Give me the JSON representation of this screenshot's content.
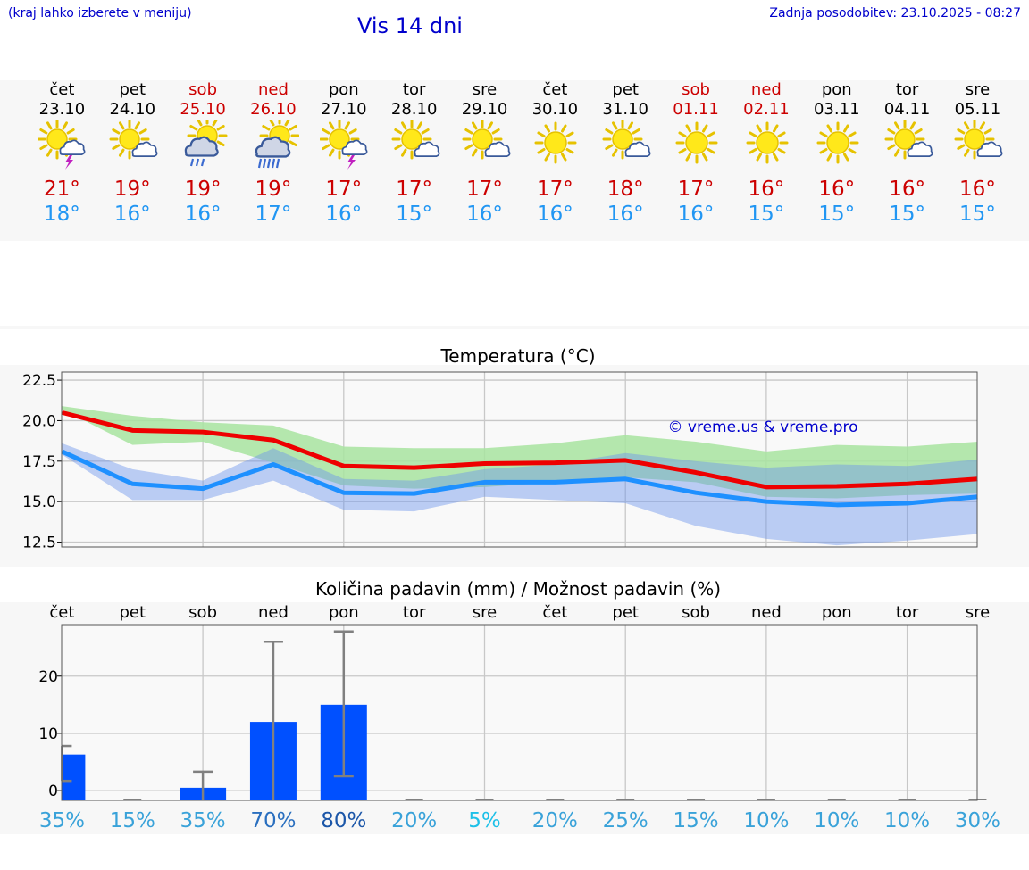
{
  "header": {
    "note": "(kraj lahko izberete v meniju)",
    "title": "Vis 14 dni",
    "update": "Zadnja posodobitev: 23.10.2025 - 08:27"
  },
  "days": [
    {
      "name": "čet",
      "date": "23.10",
      "weekend": false,
      "icon": "sun-cloud-thunder-icon",
      "tmax": "21°",
      "tmin": "18°"
    },
    {
      "name": "pet",
      "date": "24.10",
      "weekend": false,
      "icon": "sun-cloud-icon",
      "tmax": "19°",
      "tmin": "16°"
    },
    {
      "name": "sob",
      "date": "25.10",
      "weekend": true,
      "icon": "sun-cloud-rain-icon",
      "tmax": "19°",
      "tmin": "16°"
    },
    {
      "name": "ned",
      "date": "26.10",
      "weekend": true,
      "icon": "sun-cloud-heavy-rain-icon",
      "tmax": "19°",
      "tmin": "17°"
    },
    {
      "name": "pon",
      "date": "27.10",
      "weekend": false,
      "icon": "sun-cloud-thunder-icon",
      "tmax": "17°",
      "tmin": "16°"
    },
    {
      "name": "tor",
      "date": "28.10",
      "weekend": false,
      "icon": "sun-cloud-icon",
      "tmax": "17°",
      "tmin": "15°"
    },
    {
      "name": "sre",
      "date": "29.10",
      "weekend": false,
      "icon": "sun-cloud-icon",
      "tmax": "17°",
      "tmin": "16°"
    },
    {
      "name": "čet",
      "date": "30.10",
      "weekend": false,
      "icon": "sun-icon",
      "tmax": "17°",
      "tmin": "16°"
    },
    {
      "name": "pet",
      "date": "31.10",
      "weekend": false,
      "icon": "sun-cloud-icon",
      "tmax": "18°",
      "tmin": "16°"
    },
    {
      "name": "sob",
      "date": "01.11",
      "weekend": true,
      "icon": "sun-icon",
      "tmax": "17°",
      "tmin": "16°"
    },
    {
      "name": "ned",
      "date": "02.11",
      "weekend": true,
      "icon": "sun-icon",
      "tmax": "16°",
      "tmin": "15°"
    },
    {
      "name": "pon",
      "date": "03.11",
      "weekend": false,
      "icon": "sun-icon",
      "tmax": "16°",
      "tmin": "15°"
    },
    {
      "name": "tor",
      "date": "04.11",
      "weekend": false,
      "icon": "sun-cloud-icon",
      "tmax": "16°",
      "tmin": "15°"
    },
    {
      "name": "sre",
      "date": "05.11",
      "weekend": false,
      "icon": "sun-cloud-icon",
      "tmax": "16°",
      "tmin": "15°"
    }
  ],
  "colors": {
    "max": "#ee0000",
    "min": "#1e90ff",
    "max_band": "#a8e4a0",
    "min_band": "#aec6f5",
    "overlap": "#80c4a0",
    "bar": "#0050ff",
    "errorbar": "#808080",
    "pct_scale": [
      "#1dc0e8",
      "#39a2d9",
      "#2a6fbf",
      "#1b56a8"
    ]
  },
  "chart_data": [
    {
      "type": "line",
      "title": "Temperatura (°C)",
      "annotation": "© vreme.us & vreme.pro",
      "ylim": [
        12.2,
        23.0
      ],
      "yticks": [
        12.5,
        15.0,
        17.5,
        20.0,
        22.5
      ],
      "ytick_labels": [
        "12.5",
        "15.0",
        "17.5",
        "20.0",
        "22.5"
      ],
      "x": [
        0,
        1,
        2,
        3,
        4,
        5,
        6,
        7,
        8,
        9,
        10,
        11,
        12,
        13
      ],
      "series": [
        {
          "name": "max",
          "values": [
            20.5,
            19.4,
            19.3,
            18.8,
            17.2,
            17.1,
            17.35,
            17.4,
            17.55,
            16.8,
            15.9,
            15.95,
            16.1,
            16.4
          ],
          "band_low": [
            20.7,
            18.5,
            18.7,
            17.4,
            16.0,
            15.8,
            15.9,
            16.2,
            16.5,
            16.2,
            15.3,
            15.2,
            15.4,
            15.5
          ],
          "band_high": [
            20.9,
            20.3,
            19.9,
            19.7,
            18.4,
            18.3,
            18.3,
            18.6,
            19.1,
            18.7,
            18.1,
            18.5,
            18.4,
            18.7
          ]
        },
        {
          "name": "min",
          "values": [
            18.1,
            16.1,
            15.8,
            17.3,
            15.55,
            15.5,
            16.2,
            16.2,
            16.4,
            15.55,
            15.0,
            14.8,
            14.9,
            15.3
          ],
          "band_low": [
            17.9,
            15.1,
            15.1,
            16.3,
            14.5,
            14.4,
            15.3,
            15.1,
            14.9,
            13.5,
            12.7,
            12.3,
            12.6,
            13.0
          ],
          "band_high": [
            18.6,
            17.0,
            16.3,
            18.3,
            16.4,
            16.3,
            17.0,
            17.3,
            18.0,
            17.5,
            17.1,
            17.3,
            17.2,
            17.6
          ]
        }
      ]
    },
    {
      "type": "bar",
      "title": "Količina padavin (mm) / Možnost padavin (%)",
      "categories": [
        "čet",
        "pet",
        "sob",
        "ned",
        "pon",
        "tor",
        "sre",
        "čet",
        "pet",
        "sob",
        "ned",
        "pon",
        "tor",
        "sre"
      ],
      "ylim": [
        -1.7,
        29.0
      ],
      "yticks": [
        0,
        10,
        20
      ],
      "ytick_labels": [
        "0",
        "10",
        "20"
      ],
      "values": [
        6.3,
        0,
        0.5,
        12,
        15,
        0,
        0,
        0,
        0,
        0,
        0,
        0,
        0,
        0
      ],
      "error_low": [
        1.7,
        0,
        0,
        0,
        2.5,
        0,
        0,
        0,
        0,
        0,
        0,
        0,
        0,
        0
      ],
      "error_high": [
        7.8,
        0,
        3.3,
        26,
        27.8,
        0,
        0,
        0,
        0,
        0,
        0,
        0,
        0,
        0
      ],
      "probability": [
        "35%",
        "15%",
        "35%",
        "70%",
        "80%",
        "20%",
        "5%",
        "20%",
        "25%",
        "15%",
        "10%",
        "10%",
        "10%",
        "30%"
      ],
      "probability_values": [
        35,
        15,
        35,
        70,
        80,
        20,
        5,
        20,
        25,
        15,
        10,
        10,
        10,
        30
      ]
    }
  ]
}
